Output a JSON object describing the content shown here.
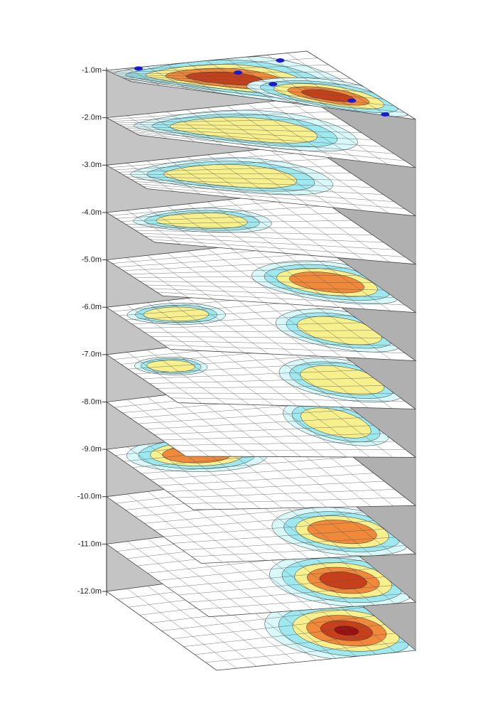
{
  "chart_data": {
    "type": "depth-slices",
    "ylim": [
      -12,
      -1
    ],
    "yticks": [
      {
        "value": -1,
        "label": "-1.0m"
      },
      {
        "value": -2,
        "label": "-2.0m"
      },
      {
        "value": -3,
        "label": "-3.0m"
      },
      {
        "value": -4,
        "label": "-4.0m"
      },
      {
        "value": -5,
        "label": "-5.0m"
      },
      {
        "value": -6,
        "label": "-6.0m"
      },
      {
        "value": -7,
        "label": "-7.0m"
      },
      {
        "value": -8,
        "label": "-8.0m"
      },
      {
        "value": -9,
        "label": "-9.0m"
      },
      {
        "value": -10,
        "label": "-10.0m"
      },
      {
        "value": -11,
        "label": "-11.0m"
      },
      {
        "value": -12,
        "label": "-12.0m"
      }
    ]
  }
}
